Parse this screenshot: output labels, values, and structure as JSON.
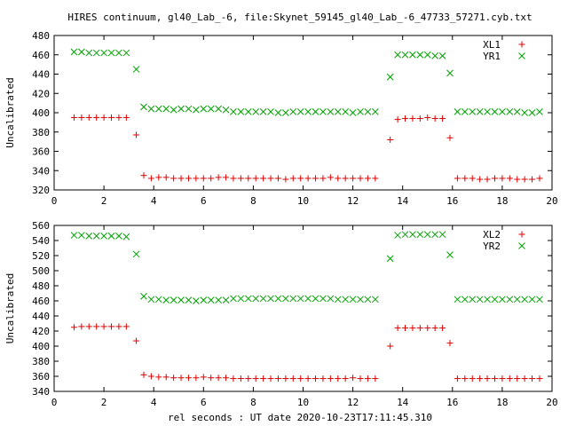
{
  "title": "HIRES continuum, gl40_Lab_-6, file:Skynet_59145_gl40_Lab_-6_47733_57271.cyb.txt",
  "xlabel": "rel seconds : UT date 2020-10-23T17:11:45.310",
  "colors": {
    "red": "#e00000",
    "green": "#00a000",
    "axis": "#000000"
  },
  "chart_data": [
    {
      "type": "scatter",
      "ylabel": "Uncalibrated",
      "xlim": [
        0,
        20
      ],
      "ylim": [
        320,
        480
      ],
      "xticks": [
        0,
        2,
        4,
        6,
        8,
        10,
        12,
        14,
        16,
        18,
        20
      ],
      "yticks": [
        320,
        340,
        360,
        380,
        400,
        420,
        440,
        460,
        480
      ],
      "legend_position": "top-right",
      "x": [
        0.8,
        1.1,
        1.4,
        1.7,
        2.0,
        2.3,
        2.6,
        2.9,
        3.3,
        3.6,
        3.9,
        4.2,
        4.5,
        4.8,
        5.1,
        5.4,
        5.7,
        6.0,
        6.3,
        6.6,
        6.9,
        7.2,
        7.5,
        7.8,
        8.1,
        8.4,
        8.7,
        9.0,
        9.3,
        9.6,
        9.9,
        10.2,
        10.5,
        10.8,
        11.1,
        11.4,
        11.7,
        12.0,
        12.3,
        12.6,
        12.9,
        13.5,
        13.8,
        14.1,
        14.4,
        14.7,
        15.0,
        15.3,
        15.6,
        15.9,
        16.2,
        16.5,
        16.8,
        17.1,
        17.4,
        17.7,
        18.0,
        18.3,
        18.6,
        18.9,
        19.2,
        19.5
      ],
      "series": [
        {
          "name": "XL1",
          "marker": "+",
          "color": "#e00000",
          "values": [
            395,
            395,
            395,
            395,
            395,
            395,
            395,
            395,
            377,
            335,
            332,
            333,
            333,
            332,
            332,
            332,
            332,
            332,
            332,
            333,
            333,
            332,
            332,
            332,
            332,
            332,
            332,
            332,
            331,
            332,
            332,
            332,
            332,
            332,
            333,
            332,
            332,
            332,
            332,
            332,
            332,
            372,
            393,
            394,
            394,
            394,
            395,
            394,
            394,
            374,
            332,
            332,
            332,
            331,
            331,
            332,
            332,
            332,
            331,
            331,
            331,
            332
          ]
        },
        {
          "name": "YR1",
          "marker": "x",
          "color": "#00a000",
          "values": [
            463,
            463,
            462,
            462,
            462,
            462,
            462,
            462,
            445,
            406,
            404,
            404,
            404,
            403,
            404,
            404,
            403,
            404,
            404,
            404,
            403,
            401,
            401,
            401,
            401,
            401,
            401,
            400,
            400,
            401,
            401,
            401,
            401,
            401,
            401,
            401,
            401,
            400,
            401,
            401,
            401,
            437,
            460,
            460,
            460,
            460,
            460,
            459,
            459,
            441,
            401,
            401,
            401,
            401,
            401,
            401,
            401,
            401,
            401,
            400,
            400,
            401
          ]
        }
      ]
    },
    {
      "type": "scatter",
      "ylabel": "Uncalibrated",
      "xlim": [
        0,
        20
      ],
      "ylim": [
        340,
        560
      ],
      "xticks": [
        0,
        2,
        4,
        6,
        8,
        10,
        12,
        14,
        16,
        18,
        20
      ],
      "yticks": [
        340,
        360,
        380,
        400,
        420,
        440,
        460,
        480,
        500,
        520,
        540,
        560
      ],
      "legend_position": "top-right",
      "x": [
        0.8,
        1.1,
        1.4,
        1.7,
        2.0,
        2.3,
        2.6,
        2.9,
        3.3,
        3.6,
        3.9,
        4.2,
        4.5,
        4.8,
        5.1,
        5.4,
        5.7,
        6.0,
        6.3,
        6.6,
        6.9,
        7.2,
        7.5,
        7.8,
        8.1,
        8.4,
        8.7,
        9.0,
        9.3,
        9.6,
        9.9,
        10.2,
        10.5,
        10.8,
        11.1,
        11.4,
        11.7,
        12.0,
        12.3,
        12.6,
        12.9,
        13.5,
        13.8,
        14.1,
        14.4,
        14.7,
        15.0,
        15.3,
        15.6,
        15.9,
        16.2,
        16.5,
        16.8,
        17.1,
        17.4,
        17.7,
        18.0,
        18.3,
        18.6,
        18.9,
        19.2,
        19.5
      ],
      "series": [
        {
          "name": "XL2",
          "marker": "+",
          "color": "#e00000",
          "values": [
            425,
            426,
            426,
            426,
            426,
            426,
            426,
            426,
            407,
            362,
            360,
            359,
            359,
            358,
            358,
            358,
            358,
            359,
            358,
            358,
            358,
            357,
            357,
            357,
            357,
            357,
            357,
            357,
            357,
            357,
            357,
            357,
            357,
            357,
            357,
            357,
            357,
            358,
            357,
            357,
            357,
            400,
            424,
            424,
            424,
            424,
            424,
            424,
            424,
            404,
            357,
            357,
            357,
            357,
            357,
            357,
            357,
            357,
            357,
            357,
            357,
            357
          ]
        },
        {
          "name": "YR2",
          "marker": "x",
          "color": "#00a000",
          "values": [
            547,
            547,
            546,
            546,
            546,
            546,
            546,
            545,
            522,
            466,
            462,
            462,
            461,
            461,
            461,
            461,
            460,
            461,
            461,
            461,
            461,
            463,
            463,
            463,
            463,
            463,
            463,
            463,
            463,
            463,
            463,
            463,
            463,
            463,
            463,
            462,
            462,
            462,
            462,
            462,
            462,
            516,
            547,
            548,
            548,
            548,
            548,
            548,
            548,
            521,
            462,
            462,
            462,
            462,
            462,
            462,
            462,
            462,
            462,
            462,
            462,
            462
          ]
        }
      ]
    }
  ]
}
